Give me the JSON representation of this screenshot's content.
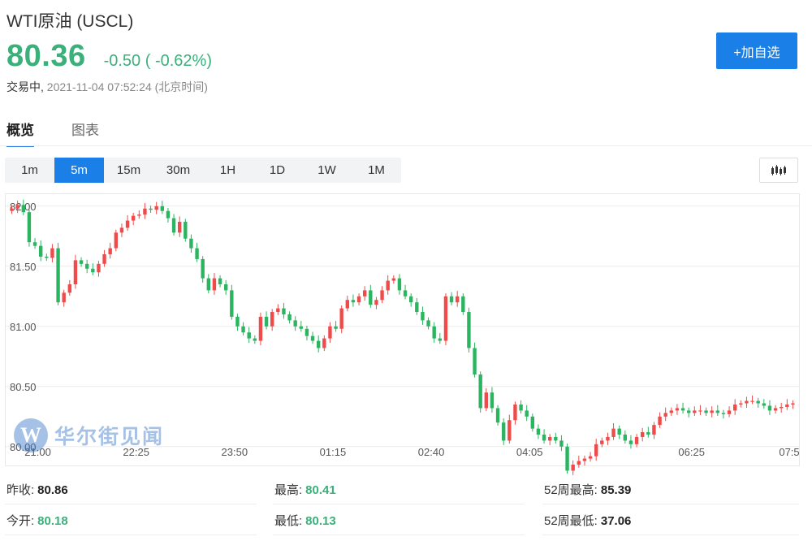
{
  "header": {
    "title": "WTI原油 (USCL)",
    "price": "80.36",
    "change": "-0.50 ( -0.62%)",
    "status_label": "交易中,",
    "timestamp": "2021-11-04 07:52:24 (北京时间)"
  },
  "add_button_label": "+加自选",
  "tabs": [
    {
      "label": "概览",
      "active": true
    },
    {
      "label": "图表",
      "active": false
    }
  ],
  "periods": [
    {
      "label": "1m",
      "active": false
    },
    {
      "label": "5m",
      "active": true
    },
    {
      "label": "15m",
      "active": false
    },
    {
      "label": "30m",
      "active": false
    },
    {
      "label": "1H",
      "active": false
    },
    {
      "label": "1D",
      "active": false
    },
    {
      "label": "1W",
      "active": false
    },
    {
      "label": "1M",
      "active": false
    }
  ],
  "icons": {
    "chart_type": "candlestick-icon"
  },
  "colors": {
    "up": "#ef4b4b",
    "down": "#2bb561",
    "accent": "#1a7fe6"
  },
  "watermark": {
    "letter": "W",
    "text": "华尔街见闻"
  },
  "chart_data": {
    "type": "candlestick",
    "y_ticks": [
      "82.00",
      "81.50",
      "81.00",
      "80.50",
      "80.00"
    ],
    "y_tick_values": [
      82.0,
      81.5,
      81.0,
      80.5,
      80.0
    ],
    "ylim": [
      79.85,
      82.1
    ],
    "x_ticks": [
      "21:00",
      "22:25",
      "23:50",
      "01:15",
      "02:40",
      "04:05",
      "06:25",
      "07:5"
    ],
    "grid": true,
    "close": [
      81.98,
      82.01,
      81.95,
      81.7,
      81.67,
      81.58,
      81.57,
      81.65,
      81.2,
      81.28,
      81.35,
      81.55,
      81.52,
      81.48,
      81.45,
      81.52,
      81.6,
      81.65,
      81.78,
      81.82,
      81.88,
      81.92,
      81.93,
      81.98,
      81.97,
      82.0,
      81.96,
      81.9,
      81.78,
      81.87,
      81.73,
      81.65,
      81.56,
      81.4,
      81.3,
      81.4,
      81.35,
      81.3,
      81.08,
      81.0,
      80.95,
      80.9,
      80.88,
      81.08,
      81.0,
      81.12,
      81.15,
      81.1,
      81.05,
      81.0,
      80.98,
      80.92,
      80.88,
      80.82,
      80.9,
      81.0,
      80.98,
      81.15,
      81.22,
      81.2,
      81.25,
      81.3,
      81.18,
      81.22,
      81.3,
      81.38,
      81.4,
      81.3,
      81.25,
      81.2,
      81.12,
      81.05,
      81.0,
      80.9,
      80.88,
      81.25,
      81.2,
      81.25,
      81.12,
      80.82,
      80.6,
      80.32,
      80.45,
      80.32,
      80.2,
      80.05,
      80.22,
      80.35,
      80.3,
      80.25,
      80.15,
      80.1,
      80.05,
      80.08,
      80.05,
      80.0,
      79.8,
      79.85,
      79.88,
      79.9,
      79.92,
      80.02,
      80.05,
      80.08,
      80.15,
      80.1,
      80.05,
      80.02,
      80.08,
      80.12,
      80.1,
      80.18,
      80.25,
      80.28,
      80.3,
      80.32,
      80.3,
      80.28,
      80.3,
      80.3,
      80.28,
      80.3,
      80.28,
      80.27,
      80.3,
      80.35,
      80.36,
      80.38,
      80.38,
      80.36,
      80.34,
      80.3,
      80.32,
      80.33,
      80.35,
      80.36
    ]
  },
  "stats": [
    {
      "label": "昨收:",
      "value": "80.86",
      "green": false
    },
    {
      "label": "最高:",
      "value": "80.41",
      "green": true
    },
    {
      "label": "52周最高:",
      "value": "85.39",
      "green": false
    },
    {
      "label": "今开:",
      "value": "80.18",
      "green": true
    },
    {
      "label": "最低:",
      "value": "80.13",
      "green": true
    },
    {
      "label": "52周最低:",
      "value": "37.06",
      "green": false
    }
  ]
}
